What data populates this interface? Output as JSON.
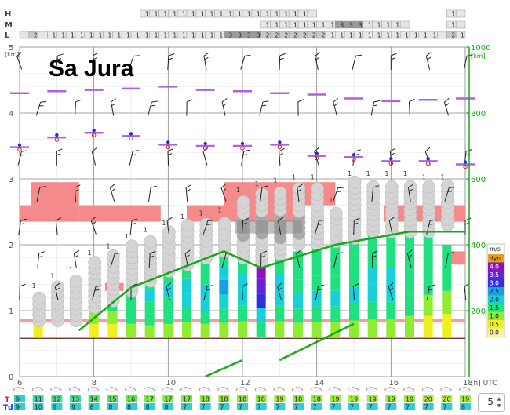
{
  "title": "Sa Jura",
  "x_ticks": [
    "6",
    "8",
    "10",
    "12",
    "14",
    "16",
    "18"
  ],
  "x_unit": "[h] UTC",
  "y_left_ticks": [
    "0",
    "1",
    "2",
    "3",
    "4",
    "5"
  ],
  "y_left_unit": "[km]",
  "y_right_ticks": [
    "200",
    "400",
    "600",
    "800",
    "1000"
  ],
  "y_right_unit": "[km]",
  "cloud_rows": [
    {
      "label": "H",
      "cells": [
        {
          "x0": 9.25,
          "x1": 9.5,
          "v": "1"
        },
        {
          "x0": 9.5,
          "x1": 9.75,
          "v": "1"
        },
        {
          "x0": 9.75,
          "x1": 10,
          "v": "1"
        },
        {
          "x0": 10,
          "x1": 10.25,
          "v": "1"
        },
        {
          "x0": 10.25,
          "x1": 10.5,
          "v": "1"
        },
        {
          "x0": 10.5,
          "x1": 10.75,
          "v": "1"
        },
        {
          "x0": 10.75,
          "x1": 11,
          "v": "1"
        },
        {
          "x0": 11,
          "x1": 11.25,
          "v": "1"
        },
        {
          "x0": 11.25,
          "x1": 11.5,
          "v": "1"
        },
        {
          "x0": 11.5,
          "x1": 11.75,
          "v": "1"
        },
        {
          "x0": 11.75,
          "x1": 12,
          "v": "1"
        },
        {
          "x0": 12,
          "x1": 12.25,
          "v": "1"
        },
        {
          "x0": 12.25,
          "x1": 12.5,
          "v": "1"
        },
        {
          "x0": 12.5,
          "x1": 12.75,
          "v": "1"
        },
        {
          "x0": 12.75,
          "x1": 13,
          "v": "1"
        },
        {
          "x0": 13,
          "x1": 13.25,
          "v": "1"
        },
        {
          "x0": 13.25,
          "x1": 13.5,
          "v": "1"
        },
        {
          "x0": 13.5,
          "x1": 13.75,
          "v": "1"
        },
        {
          "x0": 13.75,
          "x1": 14,
          "v": ""
        },
        {
          "x0": 17.5,
          "x1": 17.75,
          "v": "1"
        },
        {
          "x0": 17.75,
          "x1": 18,
          "v": ""
        }
      ]
    },
    {
      "label": "M",
      "cells": [
        {
          "x0": 12.5,
          "x1": 12.75,
          "v": "1"
        },
        {
          "x0": 12.75,
          "x1": 13,
          "v": "1"
        },
        {
          "x0": 13,
          "x1": 13.25,
          "v": "1"
        },
        {
          "x0": 13.25,
          "x1": 13.5,
          "v": "1"
        },
        {
          "x0": 13.5,
          "x1": 13.75,
          "v": "1"
        },
        {
          "x0": 13.75,
          "x1": 14,
          "v": "1"
        },
        {
          "x0": 14,
          "x1": 14.25,
          "v": "1"
        },
        {
          "x0": 14.25,
          "x1": 14.5,
          "v": "1"
        },
        {
          "x0": 14.5,
          "x1": 14.75,
          "v": "3"
        },
        {
          "x0": 14.75,
          "x1": 15,
          "v": "3"
        },
        {
          "x0": 15,
          "x1": 15.25,
          "v": "3"
        },
        {
          "x0": 15.25,
          "x1": 15.5,
          "v": "1"
        },
        {
          "x0": 15.5,
          "x1": 15.75,
          "v": "1"
        },
        {
          "x0": 15.75,
          "x1": 16,
          "v": "1"
        },
        {
          "x0": 16,
          "x1": 16.25,
          "v": "1"
        },
        {
          "x0": 16.25,
          "x1": 16.5,
          "v": ""
        },
        {
          "x0": 17.5,
          "x1": 17.75,
          "v": "1"
        },
        {
          "x0": 17.75,
          "x1": 18,
          "v": ""
        }
      ]
    },
    {
      "label": "L",
      "cells": [
        {
          "x0": 6,
          "x1": 6.25,
          "v": ""
        },
        {
          "x0": 6.25,
          "x1": 6.5,
          "v": "2"
        },
        {
          "x0": 6.5,
          "x1": 6.75,
          "v": ""
        },
        {
          "x0": 6.75,
          "x1": 7,
          "v": "1"
        },
        {
          "x0": 7,
          "x1": 7.25,
          "v": "1"
        },
        {
          "x0": 7.25,
          "x1": 7.5,
          "v": "1"
        },
        {
          "x0": 7.5,
          "x1": 7.75,
          "v": "1"
        },
        {
          "x0": 7.75,
          "x1": 8,
          "v": "1"
        },
        {
          "x0": 8,
          "x1": 8.25,
          "v": "1"
        },
        {
          "x0": 8.25,
          "x1": 8.5,
          "v": "1"
        },
        {
          "x0": 8.5,
          "x1": 8.75,
          "v": "1"
        },
        {
          "x0": 8.75,
          "x1": 9,
          "v": "1"
        },
        {
          "x0": 9,
          "x1": 9.25,
          "v": "1"
        },
        {
          "x0": 9.25,
          "x1": 9.5,
          "v": "1"
        },
        {
          "x0": 9.5,
          "x1": 9.75,
          "v": "1"
        },
        {
          "x0": 9.75,
          "x1": 10,
          "v": "1"
        },
        {
          "x0": 10,
          "x1": 10.25,
          "v": "1"
        },
        {
          "x0": 10.25,
          "x1": 10.5,
          "v": "1"
        },
        {
          "x0": 10.5,
          "x1": 10.75,
          "v": "1"
        },
        {
          "x0": 10.75,
          "x1": 11,
          "v": "1"
        },
        {
          "x0": 11,
          "x1": 11.25,
          "v": "1"
        },
        {
          "x0": 11.25,
          "x1": 11.5,
          "v": "1"
        },
        {
          "x0": 11.5,
          "x1": 11.75,
          "v": "3"
        },
        {
          "x0": 11.75,
          "x1": 12,
          "v": "3"
        },
        {
          "x0": 12,
          "x1": 12.25,
          "v": "3"
        },
        {
          "x0": 12.25,
          "x1": 12.5,
          "v": "3"
        },
        {
          "x0": 12.5,
          "x1": 12.75,
          "v": "2"
        },
        {
          "x0": 12.75,
          "x1": 13,
          "v": "2"
        },
        {
          "x0": 13,
          "x1": 13.25,
          "v": "2"
        },
        {
          "x0": 13.25,
          "x1": 13.5,
          "v": "2"
        },
        {
          "x0": 13.5,
          "x1": 13.75,
          "v": "2"
        },
        {
          "x0": 13.75,
          "x1": 14,
          "v": "2"
        },
        {
          "x0": 14,
          "x1": 14.25,
          "v": "2"
        },
        {
          "x0": 14.25,
          "x1": 14.5,
          "v": "1"
        },
        {
          "x0": 14.5,
          "x1": 14.75,
          "v": "1"
        },
        {
          "x0": 14.75,
          "x1": 15,
          "v": "1"
        },
        {
          "x0": 15,
          "x1": 15.25,
          "v": "1"
        },
        {
          "x0": 15.25,
          "x1": 15.5,
          "v": "1"
        },
        {
          "x0": 15.5,
          "x1": 15.75,
          "v": "1"
        },
        {
          "x0": 15.75,
          "x1": 16,
          "v": "1"
        },
        {
          "x0": 16,
          "x1": 16.25,
          "v": "1"
        },
        {
          "x0": 16.25,
          "x1": 16.5,
          "v": "1"
        },
        {
          "x0": 16.5,
          "x1": 16.75,
          "v": "1"
        },
        {
          "x0": 16.75,
          "x1": 17,
          "v": "1"
        },
        {
          "x0": 17,
          "x1": 17.25,
          "v": "1"
        },
        {
          "x0": 17.25,
          "x1": 17.5,
          "v": ""
        },
        {
          "x0": 17.5,
          "x1": 17.75,
          "v": "2"
        },
        {
          "x0": 17.75,
          "x1": 18,
          "v": "1"
        }
      ]
    }
  ],
  "legend": {
    "title": "m/s",
    "items": [
      {
        "label": "dyn",
        "color": "#e6a020"
      },
      {
        "label": "4.0",
        "color": "#9010c0"
      },
      {
        "label": "3.5",
        "color": "#6a20d8"
      },
      {
        "label": "3.0",
        "color": "#3030e0"
      },
      {
        "label": "2.5",
        "color": "#18a0e0"
      },
      {
        "label": "2.0",
        "color": "#18d0d8"
      },
      {
        "label": "1.5",
        "color": "#20e080"
      },
      {
        "label": "1.0",
        "color": "#90ec30"
      },
      {
        "label": "0.5",
        "color": "#f0f020"
      },
      {
        "label": "0.0",
        "color": "#fff0a0"
      }
    ]
  },
  "temp_rows": {
    "T_label": "T",
    "Td_label": "Td",
    "T": [
      "9",
      "11",
      "12",
      "13",
      "14",
      "15",
      "16",
      "17",
      "17",
      "17",
      "18",
      "18",
      "18",
      "18",
      "19",
      "18",
      "18",
      "19",
      "19",
      "19",
      "19",
      "19",
      "20",
      "20",
      "19"
    ],
    "Td": [
      "9",
      "10",
      "9",
      "9",
      "8",
      "8",
      "8",
      "8",
      "8",
      "7",
      "7",
      "7",
      "7",
      "7",
      "7",
      "7",
      "7",
      "7",
      "7",
      "7",
      "7",
      "7",
      "7",
      "7",
      "8"
    ],
    "T_colors": [
      "#30d0d0",
      "#38d8b0",
      "#40e090",
      "#40e090",
      "#50e470",
      "#58e460",
      "#60e850",
      "#78ec40",
      "#78ec40",
      "#78ec40",
      "#90ec30",
      "#90ec30",
      "#90ec30",
      "#90ec30",
      "#a0f030",
      "#90ec30",
      "#90ec30",
      "#a0f030",
      "#a0f030",
      "#a0f030",
      "#a0f030",
      "#a0f030",
      "#b4f030",
      "#b4f030",
      "#a0f030"
    ],
    "Td_color": "#30d0d0"
  },
  "stepper_value": "-5",
  "chart_data": {
    "type": "meteogram",
    "title": "Sa Jura",
    "x_unit": "[h] UTC",
    "xlim": [
      6,
      18
    ],
    "ylim_left_km": [
      0,
      5
    ],
    "ylim_right": [
      0,
      1000
    ],
    "thermal_columns": [
      {
        "t": 6.5,
        "top": 1.2,
        "segs": [
          "#f0f020",
          "#f0f020",
          "#f0f020"
        ]
      },
      {
        "t": 7.5,
        "top": 1.1,
        "segs": []
      },
      {
        "t": 8.0,
        "top": 1.0,
        "segs": [
          "#f0f020",
          "#90ec30"
        ]
      },
      {
        "t": 8.5,
        "top": 1.2,
        "segs": [
          "#f0f020",
          "#90ec30",
          "#20e080"
        ]
      },
      {
        "t": 9.0,
        "top": 1.4,
        "segs": [
          "#90ec30",
          "#20e080",
          "#20e080",
          "#20e080"
        ]
      },
      {
        "t": 9.5,
        "top": 1.5,
        "segs": [
          "#90ec30",
          "#20e080",
          "#20e080",
          "#18d0d8",
          "#20e080"
        ]
      },
      {
        "t": 10.0,
        "top": 1.6,
        "segs": [
          "#90ec30",
          "#20e080",
          "#20e080",
          "#18d0d8",
          "#20e080"
        ]
      },
      {
        "t": 10.5,
        "top": 1.7,
        "segs": [
          "#90ec30",
          "#20e080",
          "#18d0d8",
          "#18d0d8",
          "#20e080"
        ]
      },
      {
        "t": 11.0,
        "top": 1.8,
        "segs": [
          "#90ec30",
          "#20e080",
          "#18d0d8",
          "#18d0d8",
          "#20e080",
          "#20e080"
        ]
      },
      {
        "t": 11.5,
        "top": 1.9,
        "segs": [
          "#90ec30",
          "#20e080",
          "#18d0d8",
          "#18a0e0",
          "#18d0d8",
          "#20e080"
        ]
      },
      {
        "t": 12.0,
        "top": 1.8,
        "segs": [
          "#90ec30",
          "#20e080",
          "#18d0d8",
          "#18d0d8",
          "#20e080"
        ]
      },
      {
        "t": 12.5,
        "top": 1.7,
        "segs": [
          "#20e080",
          "#18d0d8",
          "#3030e0",
          "#6a20d8",
          "#9010c0"
        ]
      },
      {
        "t": 13.0,
        "top": 1.8,
        "segs": [
          "#90ec30",
          "#20e080",
          "#18d0d8",
          "#18d0d8",
          "#20e080"
        ]
      },
      {
        "t": 13.5,
        "top": 1.9,
        "segs": [
          "#90ec30",
          "#20e080",
          "#18d0d8",
          "#20e080",
          "#20e080",
          "#20e080"
        ]
      },
      {
        "t": 14.0,
        "top": 2.0,
        "segs": [
          "#90ec30",
          "#20e080",
          "#18d0d8",
          "#20e080",
          "#20e080",
          "#20e080"
        ]
      },
      {
        "t": 14.5,
        "top": 2.0,
        "segs": [
          "#90ec30",
          "#20e080",
          "#18d0d8",
          "#20e080",
          "#20e080",
          "#20e080"
        ]
      },
      {
        "t": 15.0,
        "top": 2.1,
        "segs": [
          "#90ec30",
          "#20e080",
          "#18d0d8",
          "#20e080",
          "#20e080",
          "#20e080"
        ]
      },
      {
        "t": 15.5,
        "top": 2.2,
        "segs": [
          "#90ec30",
          "#20e080",
          "#18d0d8",
          "#18d0d8",
          "#20e080",
          "#20e080"
        ]
      },
      {
        "t": 16.0,
        "top": 2.2,
        "segs": [
          "#90ec30",
          "#20e080",
          "#18d0d8",
          "#18d0d8",
          "#20e080",
          "#20e080"
        ]
      },
      {
        "t": 16.5,
        "top": 2.2,
        "segs": [
          "#90ec30",
          "#20e080",
          "#20e080",
          "#20e080",
          "#20e080"
        ]
      },
      {
        "t": 17.0,
        "top": 2.2,
        "segs": [
          "#f0f020",
          "#90ec30",
          "#20e080",
          "#20e080",
          "#20e080"
        ]
      },
      {
        "t": 17.5,
        "top": 2.0,
        "segs": [
          "#f0f020",
          "#90ec30",
          "#20e080",
          "#20e080"
        ]
      }
    ],
    "cloud_stacks": [
      {
        "t": 6.5,
        "base": 0.85,
        "top": 1.25
      },
      {
        "t": 7.0,
        "base": 0.85,
        "top": 1.4
      },
      {
        "t": 7.5,
        "base": 0.85,
        "top": 1.5
      },
      {
        "t": 8.0,
        "base": 1.05,
        "top": 1.75
      },
      {
        "t": 8.5,
        "base": 1.15,
        "top": 1.85
      },
      {
        "t": 9.0,
        "base": 1.3,
        "top": 2.0
      },
      {
        "t": 9.5,
        "base": 1.45,
        "top": 2.1
      },
      {
        "t": 10.0,
        "base": 1.6,
        "top": 2.2
      },
      {
        "t": 10.5,
        "base": 1.7,
        "top": 2.3
      },
      {
        "t": 11.0,
        "base": 1.8,
        "top": 2.35
      },
      {
        "t": 11.5,
        "base": 1.9,
        "top": 2.4
      },
      {
        "t": 12.0,
        "base": 1.8,
        "top": 2.7
      },
      {
        "t": 12.5,
        "base": 1.75,
        "top": 2.8
      },
      {
        "t": 13.0,
        "base": 1.85,
        "top": 2.85
      },
      {
        "t": 13.5,
        "base": 2.0,
        "top": 2.9
      },
      {
        "t": 14.0,
        "base": 2.0,
        "top": 2.9
      },
      {
        "t": 14.5,
        "base": 2.05,
        "top": 2.55
      },
      {
        "t": 15.0,
        "base": 2.1,
        "top": 2.95
      },
      {
        "t": 15.5,
        "base": 2.2,
        "top": 2.95
      },
      {
        "t": 16.0,
        "base": 2.2,
        "top": 2.95
      },
      {
        "t": 16.5,
        "base": 2.2,
        "top": 2.95
      },
      {
        "t": 17.0,
        "base": 2.2,
        "top": 2.9
      },
      {
        "t": 17.5,
        "base": 2.3,
        "top": 2.9
      }
    ],
    "red_zones": [
      {
        "t0": 6.0,
        "t1": 7.6,
        "y0": 2.35,
        "y1": 2.6
      },
      {
        "t0": 6.3,
        "t1": 7.6,
        "y0": 2.6,
        "y1": 2.95
      },
      {
        "t0": 7.6,
        "t1": 9.8,
        "y0": 2.35,
        "y1": 2.6
      },
      {
        "t0": 10.5,
        "t1": 13.6,
        "y0": 2.35,
        "y1": 2.6
      },
      {
        "t0": 11.5,
        "t1": 14.5,
        "y0": 2.6,
        "y1": 2.95
      },
      {
        "t0": 15.8,
        "t1": 18.0,
        "y0": 2.35,
        "y1": 2.6
      },
      {
        "t0": 8.3,
        "t1": 8.8,
        "y0": 1.3,
        "y1": 1.42
      },
      {
        "t0": 17.6,
        "t1": 18.0,
        "y0": 1.7,
        "y1": 1.9
      }
    ],
    "green_lines": [
      {
        "pts": [
          [
            7.6,
            0.7
          ],
          [
            9.0,
            1.35
          ],
          [
            11.5,
            1.9
          ],
          [
            12.5,
            1.65
          ],
          [
            14.5,
            2.0
          ],
          [
            16.5,
            2.2
          ],
          [
            18.0,
            2.2
          ]
        ]
      },
      {
        "pts": [
          [
            13.0,
            0.25
          ],
          [
            15.0,
            0.8
          ]
        ]
      },
      {
        "pts": [
          [
            11.0,
            0.0
          ],
          [
            12.0,
            0.25
          ]
        ]
      }
    ],
    "purple_markers": [
      {
        "t": 6.0,
        "y": 4.3
      },
      {
        "t": 7.0,
        "y": 4.33
      },
      {
        "t": 8.0,
        "y": 4.35
      },
      {
        "t": 9.0,
        "y": 4.37
      },
      {
        "t": 10.0,
        "y": 4.4
      },
      {
        "t": 11.0,
        "y": 4.35
      },
      {
        "t": 12.0,
        "y": 4.33
      },
      {
        "t": 13.0,
        "y": 4.3
      },
      {
        "t": 14.0,
        "y": 4.28
      },
      {
        "t": 15.0,
        "y": 4.22
      },
      {
        "t": 16.0,
        "y": 4.18
      },
      {
        "t": 17.0,
        "y": 4.2
      },
      {
        "t": 18.0,
        "y": 4.22
      },
      {
        "t": 6.0,
        "y": 3.48
      },
      {
        "t": 7.0,
        "y": 3.63
      },
      {
        "t": 8.0,
        "y": 3.7
      },
      {
        "t": 9.0,
        "y": 3.65
      },
      {
        "t": 10.0,
        "y": 3.52
      },
      {
        "t": 11.0,
        "y": 3.5
      },
      {
        "t": 12.0,
        "y": 3.5
      },
      {
        "t": 13.0,
        "y": 3.52
      },
      {
        "t": 14.0,
        "y": 3.35
      },
      {
        "t": 15.0,
        "y": 3.33
      },
      {
        "t": 16.0,
        "y": 3.27
      },
      {
        "t": 17.0,
        "y": 3.27
      },
      {
        "t": 18.0,
        "y": 3.22
      }
    ]
  }
}
